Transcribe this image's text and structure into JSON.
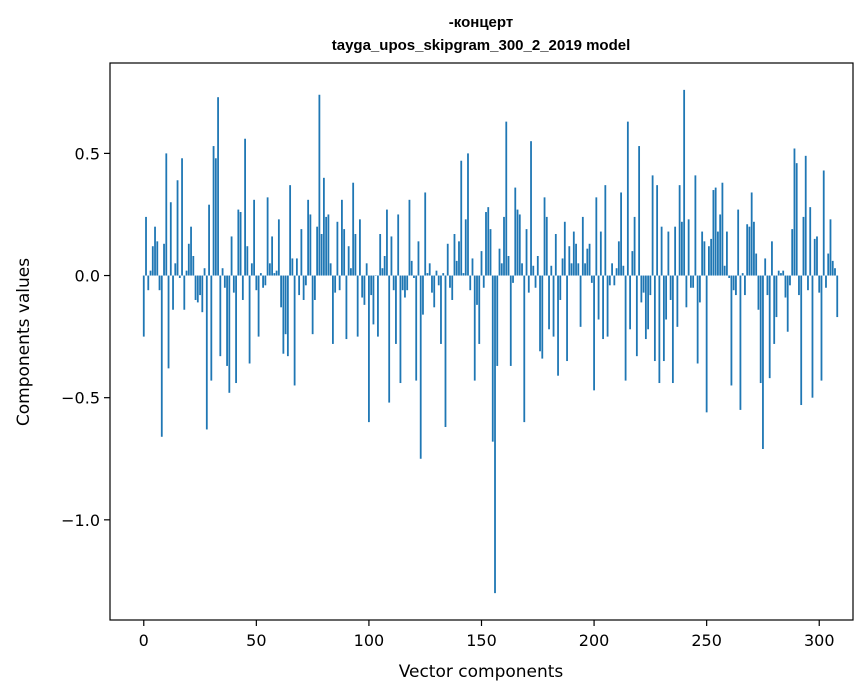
{
  "chart_data": {
    "type": "bar",
    "title": "-концерт",
    "subtitle": "tayga_upos_skipgram_300_2_2019 model",
    "xlabel": "Vector components",
    "ylabel": "Components values",
    "xlim": [
      -15,
      315
    ],
    "ylim": [
      -1.41,
      0.87
    ],
    "x_ticks": [
      0,
      50,
      100,
      150,
      200,
      250,
      300
    ],
    "x_tick_labels": [
      "0",
      "50",
      "100",
      "150",
      "200",
      "250",
      "300"
    ],
    "y_ticks": [
      0.5,
      0.0,
      -0.5,
      -1.0
    ],
    "y_tick_labels": [
      "0.5",
      "0.0",
      "−0.5",
      "−1.0"
    ],
    "bar_color": "#1f77b4",
    "grid": false,
    "series": [
      {
        "name": "-концерт",
        "x_start": 0,
        "values": [
          -0.25,
          0.24,
          -0.06,
          0.02,
          0.12,
          0.2,
          0.14,
          -0.06,
          -0.66,
          0.13,
          0.5,
          -0.38,
          0.3,
          -0.14,
          0.05,
          0.39,
          -0.01,
          0.48,
          -0.14,
          0.02,
          0.13,
          0.2,
          0.08,
          -0.1,
          -0.11,
          -0.08,
          -0.15,
          0.03,
          -0.63,
          0.29,
          -0.43,
          0.53,
          0.48,
          0.73,
          -0.33,
          0.03,
          -0.05,
          -0.37,
          -0.48,
          0.16,
          -0.07,
          -0.44,
          0.27,
          0.26,
          -0.1,
          0.56,
          0.12,
          -0.36,
          0.05,
          0.31,
          -0.06,
          -0.25,
          0.01,
          -0.05,
          -0.04,
          0.32,
          0.05,
          0.16,
          0.01,
          0.02,
          0.23,
          -0.13,
          -0.32,
          -0.24,
          -0.33,
          0.37,
          0.07,
          -0.45,
          0.07,
          -0.08,
          0.19,
          -0.1,
          -0.04,
          0.31,
          0.25,
          -0.24,
          -0.1,
          0.2,
          0.74,
          0.17,
          0.4,
          0.24,
          0.25,
          0.05,
          -0.28,
          -0.07,
          0.22,
          -0.06,
          0.31,
          0.19,
          -0.26,
          0.12,
          0.03,
          0.38,
          0.17,
          -0.25,
          0.23,
          -0.09,
          -0.12,
          0.05,
          -0.6,
          -0.08,
          -0.2,
          0.0,
          -0.25,
          0.17,
          0.03,
          0.08,
          0.27,
          -0.52,
          0.16,
          -0.06,
          -0.28,
          0.25,
          -0.44,
          -0.06,
          -0.09,
          -0.06,
          0.31,
          0.06,
          -0.01,
          -0.43,
          0.14,
          -0.75,
          -0.16,
          0.34,
          0.01,
          0.05,
          -0.07,
          -0.13,
          0.02,
          -0.04,
          -0.28,
          0.01,
          -0.62,
          0.13,
          -0.05,
          -0.1,
          0.17,
          0.06,
          0.14,
          0.47,
          0.01,
          0.23,
          0.5,
          -0.06,
          0.07,
          -0.43,
          -0.12,
          -0.28,
          0.1,
          -0.05,
          0.26,
          0.28,
          0.19,
          -0.68,
          -1.3,
          -0.37,
          0.11,
          0.05,
          0.24,
          0.63,
          0.08,
          -0.37,
          -0.03,
          0.36,
          0.27,
          0.25,
          0.05,
          -0.6,
          0.19,
          -0.07,
          0.55,
          0.04,
          -0.05,
          0.08,
          -0.31,
          -0.34,
          0.32,
          0.24,
          -0.22,
          0.04,
          -0.25,
          0.17,
          -0.41,
          -0.1,
          0.07,
          0.22,
          -0.35,
          0.12,
          0.05,
          0.18,
          0.13,
          0.05,
          -0.21,
          0.24,
          0.05,
          0.11,
          0.13,
          -0.03,
          -0.47,
          0.32,
          -0.18,
          0.18,
          -0.26,
          0.37,
          -0.25,
          -0.04,
          0.05,
          -0.04,
          0.03,
          0.14,
          0.34,
          0.04,
          -0.43,
          0.63,
          -0.22,
          0.1,
          0.24,
          -0.33,
          0.53,
          -0.11,
          -0.07,
          -0.26,
          -0.22,
          -0.08,
          0.41,
          -0.35,
          0.37,
          -0.44,
          0.2,
          -0.35,
          -0.18,
          0.18,
          -0.1,
          -0.44,
          0.2,
          -0.21,
          0.37,
          0.22,
          0.76,
          -0.13,
          0.23,
          -0.05,
          -0.05,
          0.41,
          -0.36,
          -0.11,
          0.18,
          0.14,
          -0.56,
          0.12,
          0.15,
          0.35,
          0.36,
          0.18,
          0.25,
          0.38,
          0.04,
          0.18,
          -0.01,
          -0.45,
          -0.06,
          -0.08,
          0.27,
          -0.55,
          0.01,
          -0.08,
          0.21,
          0.2,
          0.34,
          0.22,
          0.09,
          -0.14,
          -0.44,
          -0.71,
          0.07,
          -0.08,
          -0.42,
          0.14,
          -0.28,
          -0.17,
          0.02,
          0.01,
          0.02,
          -0.09,
          -0.23,
          -0.04,
          0.19,
          0.52,
          0.46,
          -0.08,
          -0.53,
          0.24,
          0.49,
          -0.06,
          0.28,
          -0.5,
          0.15,
          0.16,
          -0.07,
          -0.43,
          0.43,
          -0.05,
          0.09,
          0.23,
          0.06,
          0.03,
          -0.17
        ]
      }
    ]
  }
}
